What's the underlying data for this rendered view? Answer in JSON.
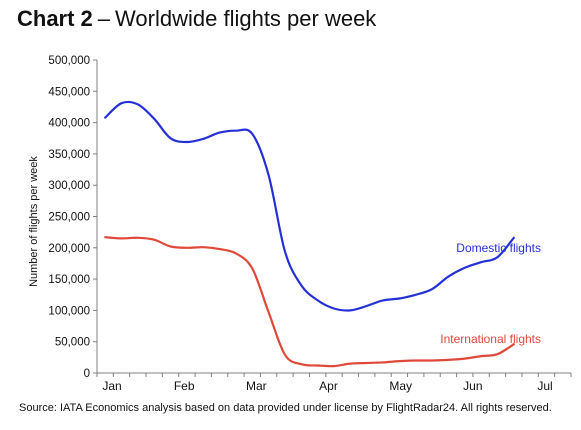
{
  "header": {
    "title_bold": "Chart 2",
    "title_separator": "–",
    "title_rest": "Worldwide flights per week"
  },
  "source_note": "Source: IATA Economics analysis based on data provided under license by FlightRadar24. All rights reserved.",
  "colors": {
    "domestic": "#2531d6",
    "international": "#e0483a",
    "axis": "#808080"
  },
  "chart_data": {
    "type": "line",
    "title": "Worldwide flights per week",
    "xlabel": "",
    "ylabel": "Number of flights per week",
    "x_ticks": [
      "Jan",
      "Feb",
      "Mar",
      "Apr",
      "May",
      "Jun",
      "Jul"
    ],
    "y_ticks": [
      "0",
      "50,000",
      "100,000",
      "150,000",
      "200,000",
      "250,000",
      "300,000",
      "350,000",
      "400,000",
      "450,000",
      "500,000"
    ],
    "ylim": [
      0,
      500000
    ],
    "grid": false,
    "week_count": 29,
    "series": [
      {
        "name": "Domestic flights",
        "color": "#2531d6",
        "values": [
          408000,
          431000,
          429000,
          406000,
          375000,
          369000,
          374000,
          384000,
          387000,
          382000,
          316000,
          194000,
          140000,
          116000,
          103000,
          100000,
          107000,
          116000,
          119000,
          125000,
          134000,
          154000,
          168000,
          177000,
          185000,
          216000
        ]
      },
      {
        "name": "International flights",
        "color": "#e0483a",
        "values": [
          217000,
          215000,
          216000,
          213000,
          202000,
          200000,
          201000,
          198000,
          191000,
          167000,
          97000,
          29000,
          14000,
          12000,
          11000,
          15000,
          16000,
          17000,
          19000,
          20000,
          20000,
          21000,
          23000,
          27000,
          30000,
          46000
        ]
      }
    ],
    "annotations": [
      "Domestic flights",
      "International flights"
    ]
  }
}
